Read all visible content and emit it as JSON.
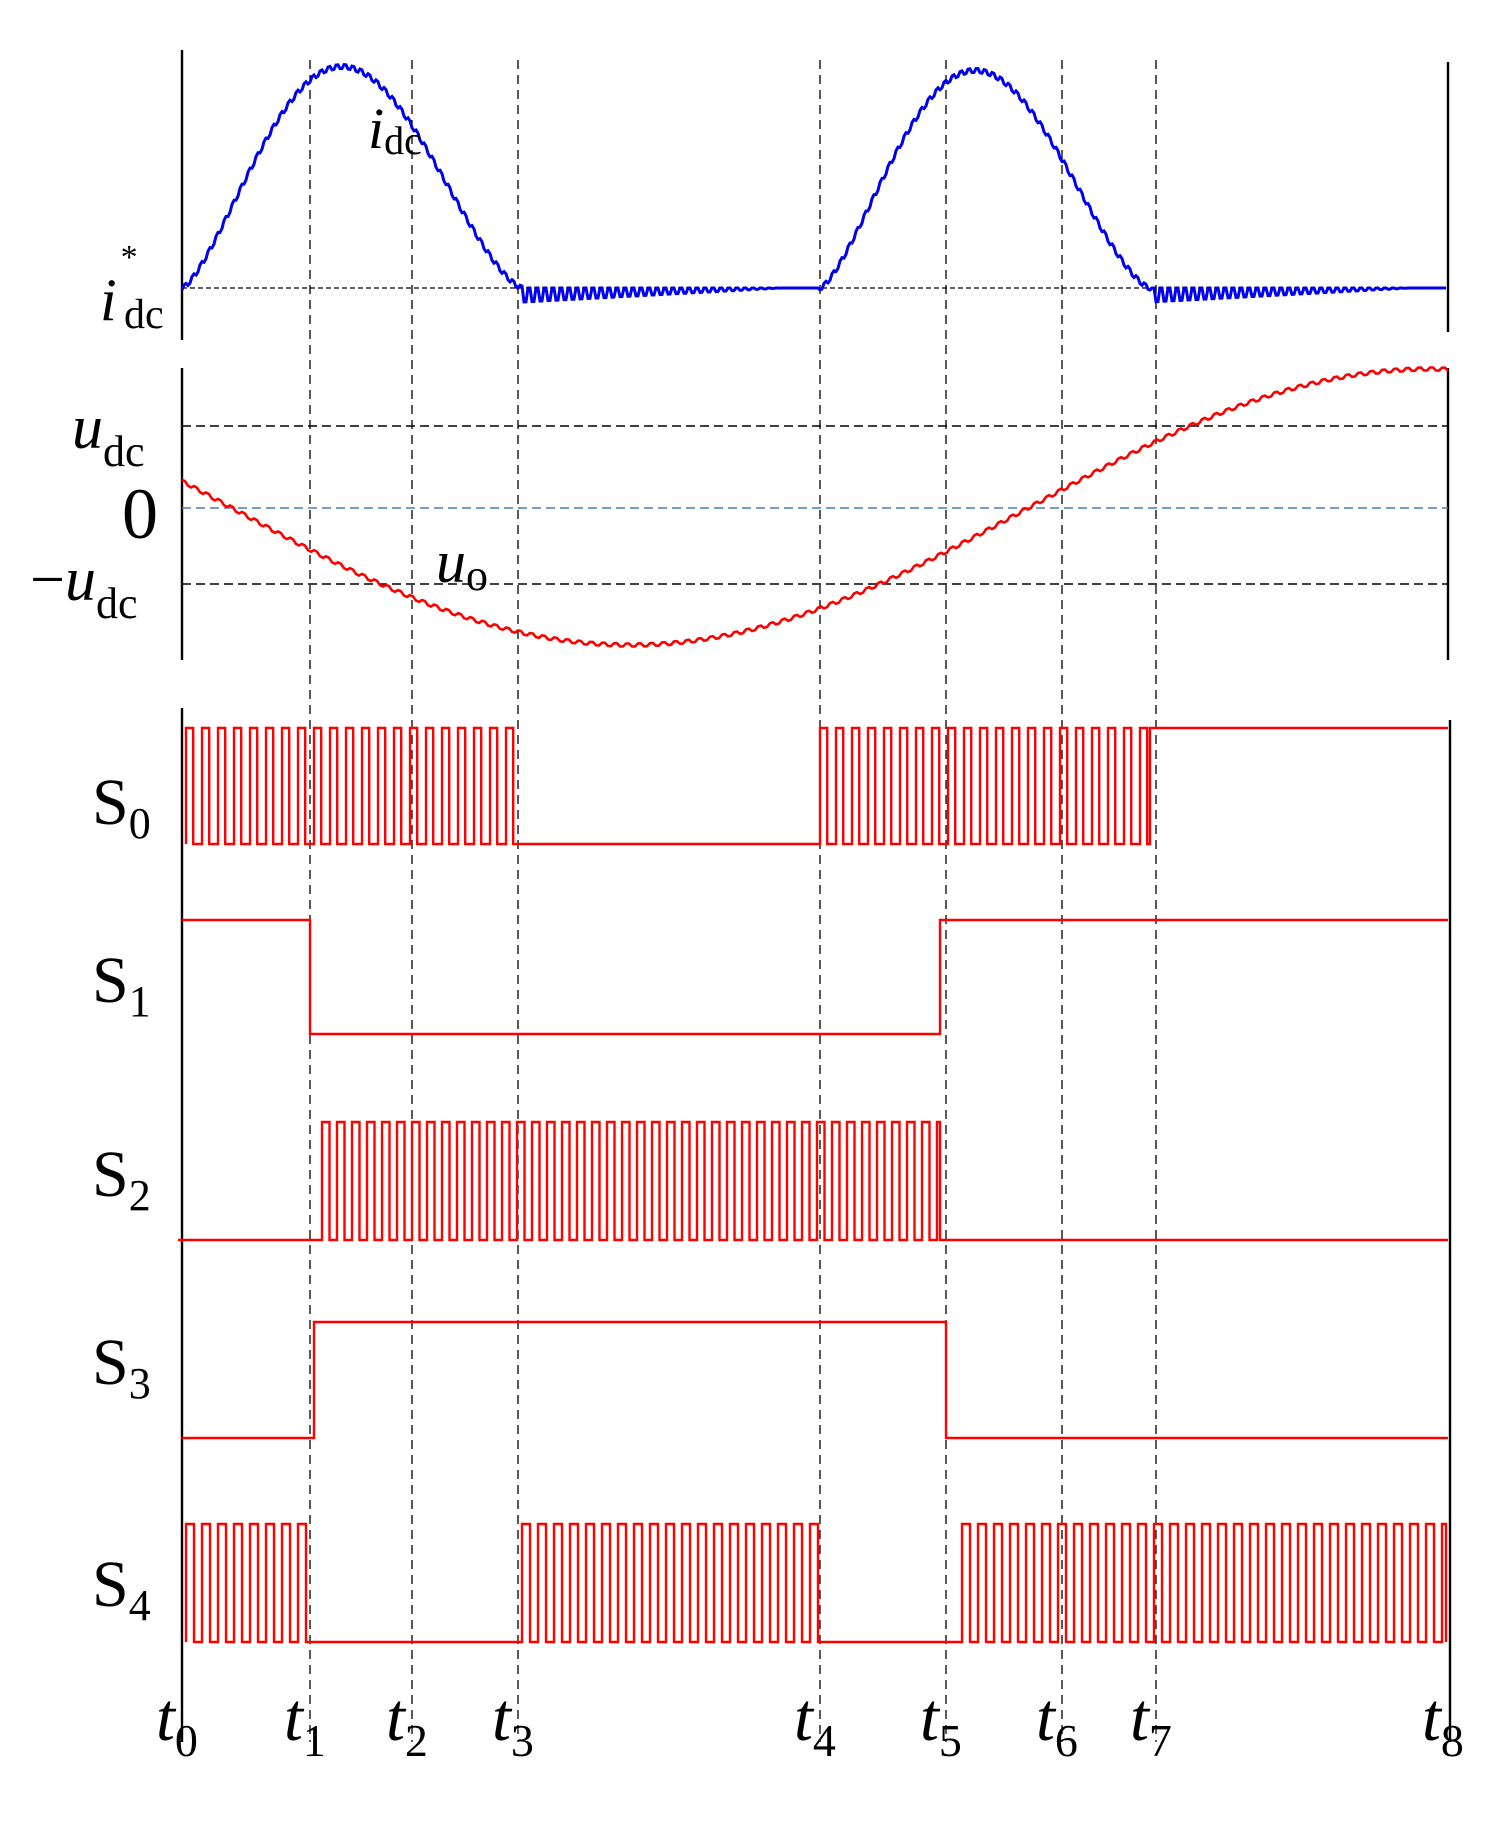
{
  "colors": {
    "current": "#0000ee",
    "voltage": "#ff0000",
    "switching": "#ff0000",
    "axis": "#000000",
    "reference": "#000000",
    "zero_line": "#4a7fb5"
  },
  "time_markers": [
    {
      "sym": "t",
      "sub": "0"
    },
    {
      "sym": "t",
      "sub": "1"
    },
    {
      "sym": "t",
      "sub": "2"
    },
    {
      "sym": "t",
      "sub": "3"
    },
    {
      "sym": "t",
      "sub": "4"
    },
    {
      "sym": "t",
      "sub": "5"
    },
    {
      "sym": "t",
      "sub": "6"
    },
    {
      "sym": "t",
      "sub": "7"
    },
    {
      "sym": "t",
      "sub": "8"
    }
  ],
  "current_panel": {
    "trace_label": {
      "sym": "i",
      "sub": "dc"
    },
    "ref_label": {
      "sym": "i",
      "sub": "dc",
      "sup": "*"
    }
  },
  "voltage_panel": {
    "trace_label": {
      "sym": "u",
      "sub": "o"
    },
    "level_labels": [
      {
        "prefix": "",
        "sym": "u",
        "sub": "dc"
      },
      {
        "prefix": "0",
        "sym": "",
        "sub": ""
      },
      {
        "prefix": "−",
        "sym": "u",
        "sub": "dc"
      }
    ]
  },
  "switch_signals": [
    {
      "label": "S",
      "sub": "0"
    },
    {
      "label": "S",
      "sub": "1"
    },
    {
      "label": "S",
      "sub": "2"
    },
    {
      "label": "S",
      "sub": "3"
    },
    {
      "label": "S",
      "sub": "4"
    }
  ]
}
